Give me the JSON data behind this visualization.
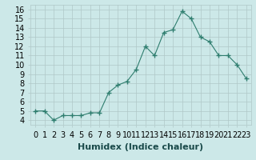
{
  "x": [
    0,
    1,
    2,
    3,
    4,
    5,
    6,
    7,
    8,
    9,
    10,
    11,
    12,
    13,
    14,
    15,
    16,
    17,
    18,
    19,
    20,
    21,
    22,
    23
  ],
  "y": [
    5.0,
    5.0,
    4.0,
    4.5,
    4.5,
    4.5,
    4.8,
    4.8,
    7.0,
    7.8,
    8.2,
    9.5,
    12.0,
    11.0,
    13.5,
    13.8,
    15.8,
    15.0,
    13.0,
    12.5,
    11.0,
    11.0,
    10.0,
    8.5
  ],
  "xlabel": "Humidex (Indice chaleur)",
  "ylim": [
    3.5,
    16.5
  ],
  "xlim": [
    -0.5,
    23.5
  ],
  "yticks": [
    4,
    5,
    6,
    7,
    8,
    9,
    10,
    11,
    12,
    13,
    14,
    15,
    16
  ],
  "xtick_labels": [
    "0",
    "1",
    "2",
    "3",
    "4",
    "5",
    "6",
    "7",
    "8",
    "9",
    "10",
    "11",
    "12",
    "13",
    "14",
    "15",
    "16",
    "17",
    "18",
    "19",
    "20",
    "21",
    "22",
    "23"
  ],
  "line_color": "#2e7d6e",
  "marker": "+",
  "marker_size": 4,
  "bg_color": "#cce8e8",
  "grid_color": "#b0c8c8",
  "xlabel_fontsize": 8,
  "tick_fontsize": 7
}
